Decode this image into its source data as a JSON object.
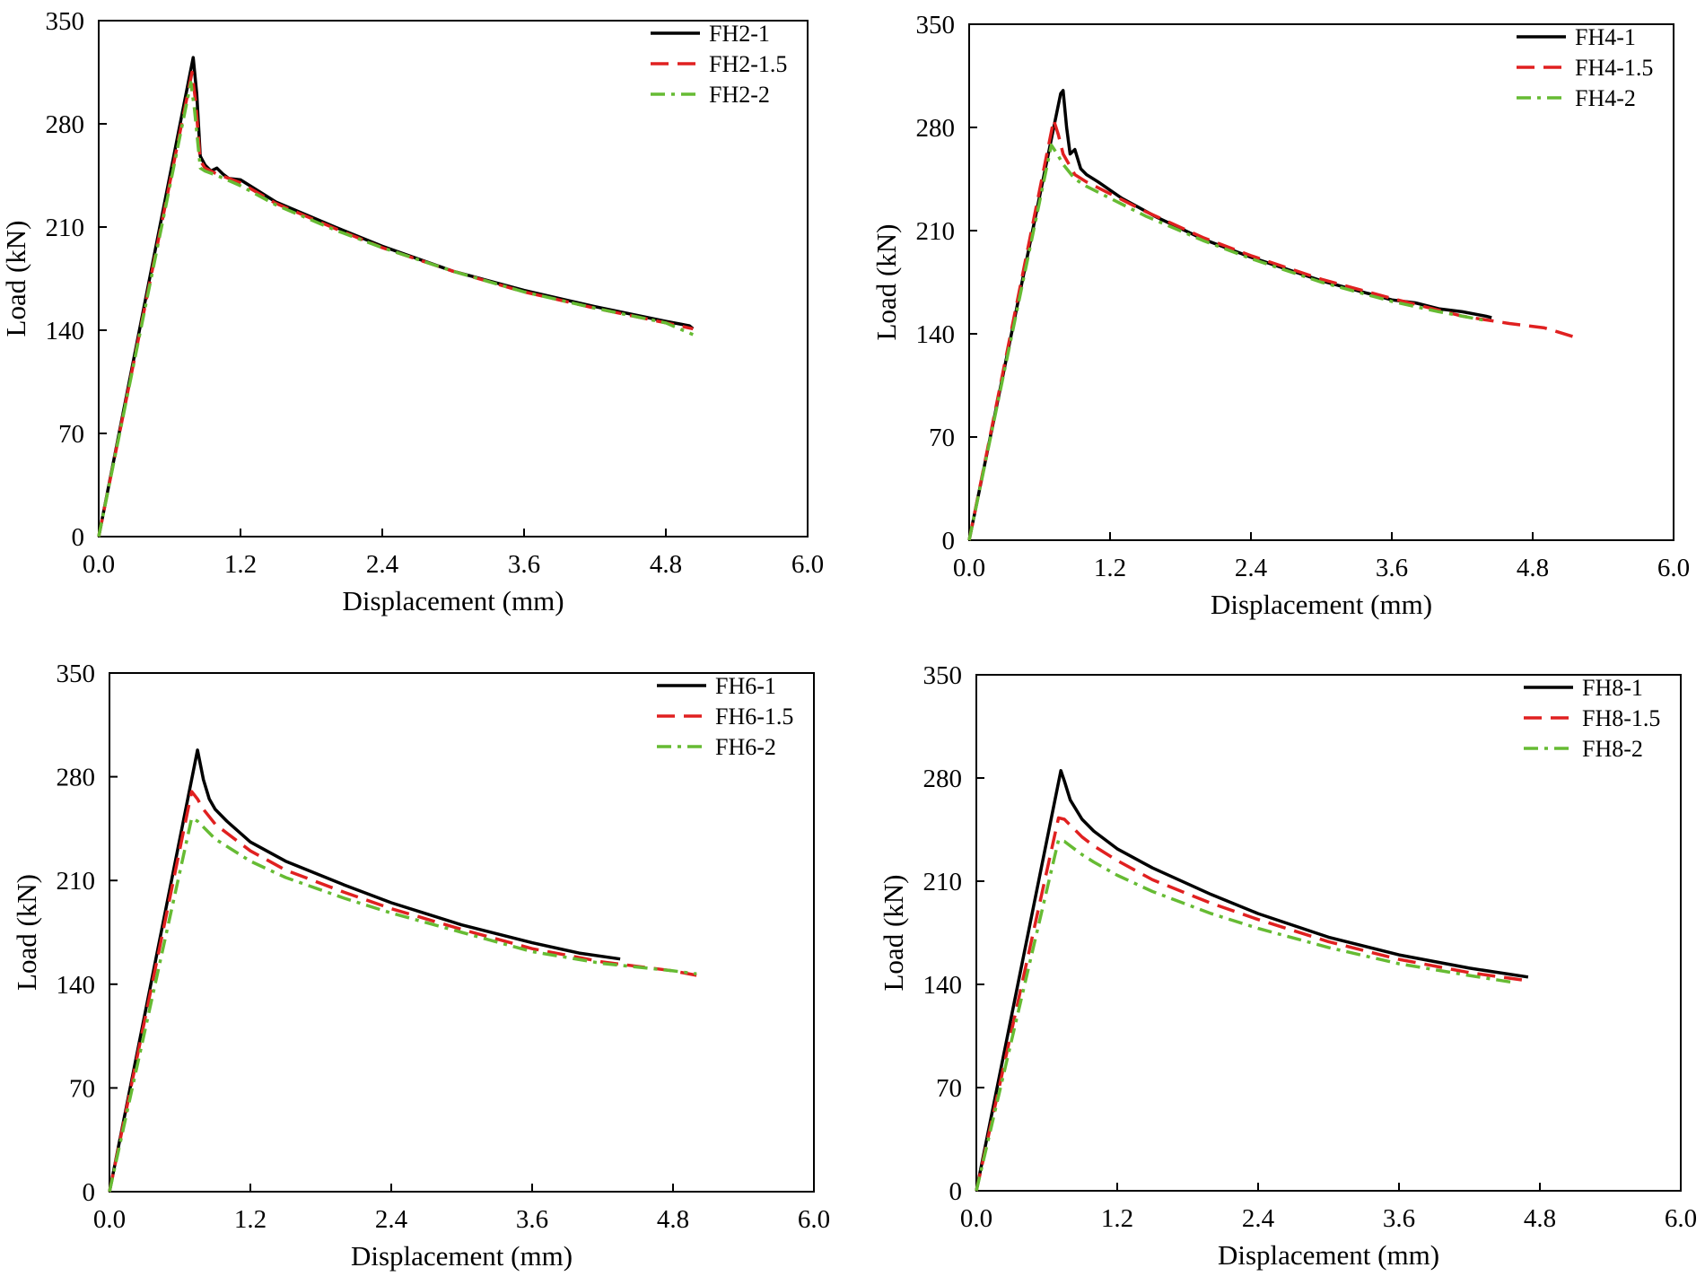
{
  "chart_data": [
    {
      "type": "line",
      "xlabel": "Displacement (mm)",
      "ylabel": "Load (kN)",
      "xlim": [
        0,
        6
      ],
      "ylim": [
        0,
        350
      ],
      "xticks": [
        "0.0",
        "1.2",
        "2.4",
        "3.6",
        "4.8",
        "6.0"
      ],
      "yticks": [
        "0",
        "70",
        "140",
        "210",
        "280",
        "350"
      ],
      "legend": "top-right",
      "series": [
        {
          "name": "FH2-1",
          "color": "#000000",
          "dash": "solid",
          "x": [
            0,
            0.8,
            0.83,
            0.86,
            0.9,
            0.95,
            1.0,
            1.05,
            1.1,
            1.2,
            1.5,
            2.0,
            2.4,
            3.0,
            3.6,
            4.2,
            4.8,
            5.0,
            5.03
          ],
          "y": [
            0,
            325,
            300,
            258,
            252,
            248,
            250,
            246,
            243,
            242,
            227,
            210,
            197,
            180,
            167,
            156,
            146,
            143,
            141
          ]
        },
        {
          "name": "FH2-1.5",
          "color": "#e02020",
          "dash": "dash",
          "x": [
            0,
            0.79,
            0.82,
            0.86,
            0.9,
            1.0,
            1.2,
            1.5,
            2.0,
            2.4,
            3.0,
            3.6,
            4.2,
            4.8,
            5.03
          ],
          "y": [
            0,
            315,
            295,
            255,
            250,
            246,
            240,
            226,
            209,
            196,
            180,
            166,
            155,
            145,
            141
          ]
        },
        {
          "name": "FH2-2",
          "color": "#66bb33",
          "dash": "dashdot",
          "x": [
            0,
            0.78,
            0.81,
            0.86,
            0.9,
            1.0,
            1.2,
            1.5,
            2.0,
            2.4,
            3.0,
            3.6,
            4.2,
            4.8,
            5.03
          ],
          "y": [
            0,
            308,
            290,
            250,
            248,
            245,
            238,
            225,
            208,
            196,
            180,
            166,
            155,
            145,
            137
          ]
        }
      ]
    },
    {
      "type": "line",
      "xlabel": "Displacement (mm)",
      "ylabel": "Load (kN)",
      "xlim": [
        0,
        6
      ],
      "ylim": [
        0,
        350
      ],
      "xticks": [
        "0.0",
        "1.2",
        "2.4",
        "3.6",
        "4.8",
        "6.0"
      ],
      "yticks": [
        "0",
        "70",
        "140",
        "210",
        "280",
        "350"
      ],
      "legend": "top-right",
      "series": [
        {
          "name": "FH4-1",
          "color": "#000000",
          "dash": "solid",
          "x": [
            0,
            0.78,
            0.8,
            0.83,
            0.86,
            0.9,
            0.95,
            1.0,
            1.1,
            1.3,
            1.6,
            2.0,
            2.4,
            3.0,
            3.6,
            3.8,
            4.0,
            4.2,
            4.4,
            4.45
          ],
          "y": [
            0,
            303,
            305,
            280,
            262,
            265,
            252,
            248,
            243,
            232,
            219,
            204,
            192,
            176,
            163,
            161,
            157,
            155,
            152,
            151
          ]
        },
        {
          "name": "FH4-1.5",
          "color": "#e02020",
          "dash": "dash",
          "x": [
            0,
            0.72,
            0.76,
            0.8,
            0.9,
            1.0,
            1.2,
            1.5,
            2.0,
            2.4,
            3.0,
            3.6,
            4.2,
            4.6,
            4.9,
            5.15
          ],
          "y": [
            0,
            285,
            275,
            262,
            248,
            243,
            235,
            223,
            205,
            193,
            177,
            164,
            152,
            147,
            144,
            138
          ]
        },
        {
          "name": "FH4-2",
          "color": "#66bb33",
          "dash": "dashdot",
          "x": [
            0,
            0.7,
            0.75,
            0.8,
            0.9,
            1.0,
            1.2,
            1.5,
            2.0,
            2.4,
            3.0,
            3.6,
            4.0,
            4.4
          ],
          "y": [
            0,
            268,
            262,
            255,
            245,
            240,
            232,
            220,
            203,
            191,
            175,
            162,
            155,
            149
          ]
        }
      ]
    },
    {
      "type": "line",
      "xlabel": "Displacement (mm)",
      "ylabel": "Load (kN)",
      "xlim": [
        0,
        6
      ],
      "ylim": [
        0,
        350
      ],
      "xticks": [
        "0.0",
        "1.2",
        "2.4",
        "3.6",
        "4.8",
        "6.0"
      ],
      "yticks": [
        "0",
        "70",
        "140",
        "210",
        "280",
        "350"
      ],
      "legend": "top-right",
      "series": [
        {
          "name": "FH6-1",
          "color": "#000000",
          "dash": "solid",
          "x": [
            0,
            0.75,
            0.8,
            0.85,
            0.9,
            1.0,
            1.2,
            1.5,
            2.0,
            2.4,
            3.0,
            3.6,
            4.0,
            4.35
          ],
          "y": [
            0,
            298,
            278,
            265,
            258,
            250,
            236,
            223,
            207,
            195,
            180,
            168,
            161,
            157
          ]
        },
        {
          "name": "FH6-1.5",
          "color": "#e02020",
          "dash": "dash",
          "x": [
            0,
            0.7,
            0.75,
            0.8,
            0.9,
            1.0,
            1.2,
            1.5,
            2.0,
            2.4,
            3.0,
            3.6,
            4.2,
            4.8,
            5.0
          ],
          "y": [
            0,
            270,
            265,
            258,
            248,
            242,
            230,
            217,
            202,
            191,
            177,
            164,
            155,
            149,
            146
          ]
        },
        {
          "name": "FH6-2",
          "color": "#66bb33",
          "dash": "dashdot",
          "x": [
            0,
            0.7,
            0.75,
            0.8,
            0.9,
            1.0,
            1.2,
            1.5,
            2.0,
            2.4,
            3.0,
            3.6,
            4.2,
            4.8,
            5.0
          ],
          "y": [
            0,
            252,
            250,
            246,
            238,
            233,
            223,
            212,
            198,
            188,
            175,
            162,
            154,
            149,
            147
          ]
        }
      ]
    },
    {
      "type": "line",
      "xlabel": "Displacement (mm)",
      "ylabel": "Load (kN)",
      "xlim": [
        0,
        6
      ],
      "ylim": [
        0,
        350
      ],
      "xticks": [
        "0.0",
        "1.2",
        "2.4",
        "3.6",
        "4.8",
        "6.0"
      ],
      "yticks": [
        "0",
        "70",
        "140",
        "210",
        "280",
        "350"
      ],
      "legend": "top-right",
      "series": [
        {
          "name": "FH8-1",
          "color": "#000000",
          "dash": "solid",
          "x": [
            0,
            0.72,
            0.75,
            0.8,
            0.9,
            1.0,
            1.2,
            1.5,
            2.0,
            2.4,
            3.0,
            3.6,
            4.2,
            4.7
          ],
          "y": [
            0,
            285,
            278,
            265,
            252,
            244,
            232,
            219,
            201,
            188,
            172,
            160,
            151,
            145
          ]
        },
        {
          "name": "FH8-1.5",
          "color": "#e02020",
          "dash": "dash",
          "x": [
            0,
            0.7,
            0.75,
            0.8,
            0.9,
            1.0,
            1.2,
            1.5,
            2.0,
            2.4,
            3.0,
            3.6,
            4.2,
            4.65
          ],
          "y": [
            0,
            253,
            252,
            248,
            240,
            234,
            224,
            211,
            195,
            184,
            169,
            157,
            148,
            143
          ]
        },
        {
          "name": "FH8-2",
          "color": "#66bb33",
          "dash": "dashdot",
          "x": [
            0,
            0.7,
            0.75,
            0.8,
            0.9,
            1.0,
            1.2,
            1.5,
            2.0,
            2.4,
            3.0,
            3.6,
            4.2,
            4.6
          ],
          "y": [
            0,
            238,
            237,
            234,
            228,
            223,
            214,
            203,
            188,
            178,
            165,
            154,
            146,
            141
          ]
        }
      ]
    }
  ]
}
